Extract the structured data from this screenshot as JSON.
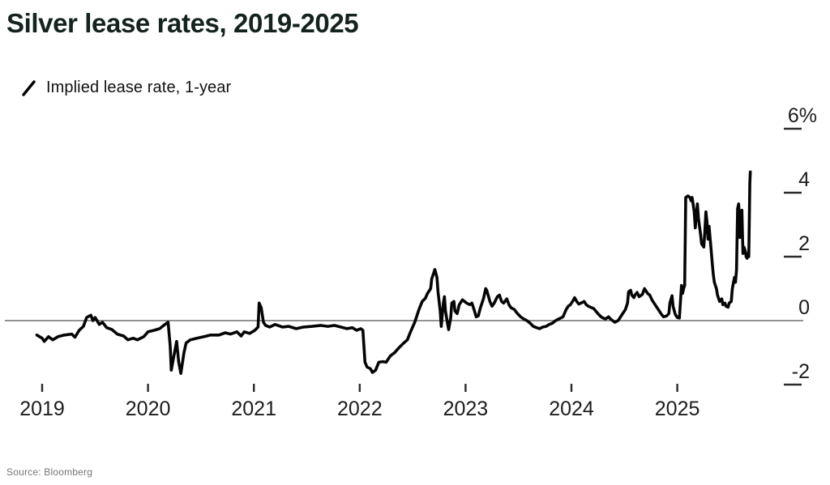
{
  "header": {
    "title": "Silver lease rates, 2019-2025"
  },
  "legend": {
    "items": [
      {
        "label": "Implied lease rate, 1-year",
        "marker": "diagonal-line-icon",
        "color": "#000000"
      }
    ]
  },
  "footer": {
    "source": "Source: Bloomberg"
  },
  "colors": {
    "line": "#050505",
    "zero_line": "#6e6e6e",
    "tick": "#2b2b2b",
    "axis_text": "#1c1c1c",
    "background": "#ffffff"
  },
  "chart_data": {
    "type": "line",
    "title": "Silver lease rates, 2019-2025",
    "xlabel": "",
    "ylabel": "Implied lease rate, 1-year (%)",
    "x_range": [
      2018.95,
      2025.78
    ],
    "y_range": [
      -2.7,
      6.4
    ],
    "grid": false,
    "zero_line": true,
    "legend_position": "top-left",
    "x_ticks": [
      {
        "value": 2019,
        "label": "2019"
      },
      {
        "value": 2020,
        "label": "2020"
      },
      {
        "value": 2021,
        "label": "2021"
      },
      {
        "value": 2022,
        "label": "2022"
      },
      {
        "value": 2023,
        "label": "2023"
      },
      {
        "value": 2024,
        "label": "2024"
      },
      {
        "value": 2025,
        "label": "2025"
      }
    ],
    "y_ticks": [
      {
        "value": 6,
        "label": "6%"
      },
      {
        "value": 4,
        "label": "4"
      },
      {
        "value": 2,
        "label": "2"
      },
      {
        "value": 0,
        "label": "0"
      },
      {
        "value": -2,
        "label": "-2"
      }
    ],
    "series": [
      {
        "name": "Implied lease rate, 1-year",
        "color": "#050505",
        "points": [
          [
            2018.95,
            -0.45
          ],
          [
            2019.0,
            -0.55
          ],
          [
            2019.02,
            -0.65
          ],
          [
            2019.06,
            -0.5
          ],
          [
            2019.1,
            -0.6
          ],
          [
            2019.15,
            -0.5
          ],
          [
            2019.21,
            -0.45
          ],
          [
            2019.28,
            -0.42
          ],
          [
            2019.31,
            -0.52
          ],
          [
            2019.35,
            -0.3
          ],
          [
            2019.39,
            -0.18
          ],
          [
            2019.42,
            0.1
          ],
          [
            2019.46,
            0.17
          ],
          [
            2019.48,
            0.0
          ],
          [
            2019.5,
            0.1
          ],
          [
            2019.54,
            -0.12
          ],
          [
            2019.57,
            -0.05
          ],
          [
            2019.61,
            -0.22
          ],
          [
            2019.66,
            -0.28
          ],
          [
            2019.71,
            -0.42
          ],
          [
            2019.77,
            -0.48
          ],
          [
            2019.81,
            -0.6
          ],
          [
            2019.86,
            -0.55
          ],
          [
            2019.9,
            -0.6
          ],
          [
            2019.96,
            -0.5
          ],
          [
            2020.0,
            -0.35
          ],
          [
            2020.06,
            -0.3
          ],
          [
            2020.11,
            -0.25
          ],
          [
            2020.16,
            -0.12
          ],
          [
            2020.19,
            -0.05
          ],
          [
            2020.21,
            -0.8
          ],
          [
            2020.22,
            -1.55
          ],
          [
            2020.25,
            -1.0
          ],
          [
            2020.27,
            -0.65
          ],
          [
            2020.29,
            -1.3
          ],
          [
            2020.31,
            -1.65
          ],
          [
            2020.34,
            -1.0
          ],
          [
            2020.36,
            -0.7
          ],
          [
            2020.4,
            -0.6
          ],
          [
            2020.46,
            -0.55
          ],
          [
            2020.53,
            -0.5
          ],
          [
            2020.59,
            -0.45
          ],
          [
            2020.67,
            -0.45
          ],
          [
            2020.73,
            -0.38
          ],
          [
            2020.78,
            -0.42
          ],
          [
            2020.84,
            -0.35
          ],
          [
            2020.88,
            -0.48
          ],
          [
            2020.91,
            -0.35
          ],
          [
            2020.96,
            -0.4
          ],
          [
            2021.01,
            -0.3
          ],
          [
            2021.04,
            -0.2
          ],
          [
            2021.05,
            0.55
          ],
          [
            2021.07,
            0.4
          ],
          [
            2021.09,
            -0.05
          ],
          [
            2021.11,
            -0.15
          ],
          [
            2021.15,
            -0.2
          ],
          [
            2021.2,
            -0.12
          ],
          [
            2021.27,
            -0.2
          ],
          [
            2021.33,
            -0.18
          ],
          [
            2021.4,
            -0.25
          ],
          [
            2021.47,
            -0.2
          ],
          [
            2021.55,
            -0.18
          ],
          [
            2021.63,
            -0.15
          ],
          [
            2021.7,
            -0.18
          ],
          [
            2021.76,
            -0.15
          ],
          [
            2021.82,
            -0.2
          ],
          [
            2021.88,
            -0.25
          ],
          [
            2021.93,
            -0.22
          ],
          [
            2021.97,
            -0.3
          ],
          [
            2022.01,
            -0.25
          ],
          [
            2022.03,
            -0.3
          ],
          [
            2022.05,
            -1.3
          ],
          [
            2022.07,
            -1.45
          ],
          [
            2022.1,
            -1.5
          ],
          [
            2022.12,
            -1.62
          ],
          [
            2022.15,
            -1.55
          ],
          [
            2022.18,
            -1.3
          ],
          [
            2022.22,
            -1.28
          ],
          [
            2022.25,
            -1.3
          ],
          [
            2022.29,
            -1.1
          ],
          [
            2022.33,
            -1.0
          ],
          [
            2022.37,
            -0.85
          ],
          [
            2022.41,
            -0.72
          ],
          [
            2022.45,
            -0.6
          ],
          [
            2022.48,
            -0.35
          ],
          [
            2022.52,
            -0.05
          ],
          [
            2022.56,
            0.35
          ],
          [
            2022.59,
            0.6
          ],
          [
            2022.62,
            0.7
          ],
          [
            2022.64,
            0.85
          ],
          [
            2022.67,
            1.0
          ],
          [
            2022.68,
            1.3
          ],
          [
            2022.7,
            1.5
          ],
          [
            2022.71,
            1.6
          ],
          [
            2022.73,
            1.35
          ],
          [
            2022.74,
            0.9
          ],
          [
            2022.76,
            0.3
          ],
          [
            2022.77,
            -0.18
          ],
          [
            2022.79,
            0.55
          ],
          [
            2022.8,
            0.75
          ],
          [
            2022.81,
            0.3
          ],
          [
            2022.83,
            -0.1
          ],
          [
            2022.84,
            -0.28
          ],
          [
            2022.86,
            0.1
          ],
          [
            2022.87,
            0.55
          ],
          [
            2022.89,
            0.6
          ],
          [
            2022.9,
            0.3
          ],
          [
            2022.92,
            0.22
          ],
          [
            2022.94,
            0.5
          ],
          [
            2022.97,
            0.65
          ],
          [
            2022.99,
            0.6
          ],
          [
            2023.01,
            0.55
          ],
          [
            2023.04,
            0.5
          ],
          [
            2023.06,
            0.55
          ],
          [
            2023.08,
            0.35
          ],
          [
            2023.1,
            0.12
          ],
          [
            2023.12,
            0.15
          ],
          [
            2023.14,
            0.4
          ],
          [
            2023.17,
            0.7
          ],
          [
            2023.19,
            1.0
          ],
          [
            2023.2,
            0.95
          ],
          [
            2023.23,
            0.6
          ],
          [
            2023.25,
            0.45
          ],
          [
            2023.27,
            0.55
          ],
          [
            2023.3,
            0.75
          ],
          [
            2023.32,
            0.8
          ],
          [
            2023.34,
            0.6
          ],
          [
            2023.36,
            0.55
          ],
          [
            2023.39,
            0.68
          ],
          [
            2023.41,
            0.5
          ],
          [
            2023.43,
            0.4
          ],
          [
            2023.46,
            0.35
          ],
          [
            2023.49,
            0.22
          ],
          [
            2023.52,
            0.12
          ],
          [
            2023.55,
            0.05
          ],
          [
            2023.58,
            0.0
          ],
          [
            2023.61,
            -0.08
          ],
          [
            2023.64,
            -0.18
          ],
          [
            2023.67,
            -0.22
          ],
          [
            2023.7,
            -0.25
          ],
          [
            2023.73,
            -0.2
          ],
          [
            2023.76,
            -0.18
          ],
          [
            2023.79,
            -0.12
          ],
          [
            2023.82,
            -0.08
          ],
          [
            2023.85,
            0.0
          ],
          [
            2023.88,
            0.05
          ],
          [
            2023.92,
            0.12
          ],
          [
            2023.95,
            0.35
          ],
          [
            2023.97,
            0.45
          ],
          [
            2023.99,
            0.5
          ],
          [
            2024.02,
            0.65
          ],
          [
            2024.03,
            0.72
          ],
          [
            2024.05,
            0.6
          ],
          [
            2024.07,
            0.52
          ],
          [
            2024.09,
            0.55
          ],
          [
            2024.12,
            0.6
          ],
          [
            2024.14,
            0.5
          ],
          [
            2024.16,
            0.45
          ],
          [
            2024.18,
            0.42
          ],
          [
            2024.21,
            0.38
          ],
          [
            2024.23,
            0.3
          ],
          [
            2024.25,
            0.22
          ],
          [
            2024.28,
            0.12
          ],
          [
            2024.3,
            0.08
          ],
          [
            2024.32,
            0.05
          ],
          [
            2024.35,
            0.12
          ],
          [
            2024.37,
            0.05
          ],
          [
            2024.39,
            0.0
          ],
          [
            2024.41,
            -0.05
          ],
          [
            2024.44,
            0.0
          ],
          [
            2024.46,
            0.1
          ],
          [
            2024.48,
            0.2
          ],
          [
            2024.51,
            0.35
          ],
          [
            2024.53,
            0.55
          ],
          [
            2024.54,
            0.9
          ],
          [
            2024.56,
            0.95
          ],
          [
            2024.57,
            0.8
          ],
          [
            2024.59,
            0.72
          ],
          [
            2024.6,
            0.8
          ],
          [
            2024.62,
            0.88
          ],
          [
            2024.64,
            0.75
          ],
          [
            2024.67,
            0.82
          ],
          [
            2024.69,
            1.0
          ],
          [
            2024.7,
            0.95
          ],
          [
            2024.72,
            0.85
          ],
          [
            2024.74,
            0.8
          ],
          [
            2024.76,
            0.65
          ],
          [
            2024.78,
            0.55
          ],
          [
            2024.8,
            0.45
          ],
          [
            2024.83,
            0.3
          ],
          [
            2024.85,
            0.2
          ],
          [
            2024.87,
            0.12
          ],
          [
            2024.9,
            0.15
          ],
          [
            2024.92,
            0.22
          ],
          [
            2024.93,
            0.55
          ],
          [
            2024.95,
            0.78
          ],
          [
            2024.96,
            0.45
          ],
          [
            2024.98,
            0.2
          ],
          [
            2025.0,
            0.1
          ],
          [
            2025.02,
            0.08
          ],
          [
            2025.03,
            0.6
          ],
          [
            2025.04,
            1.1
          ],
          [
            2025.05,
            0.85
          ],
          [
            2025.06,
            1.0
          ],
          [
            2025.07,
            1.1
          ],
          [
            2025.08,
            3.85
          ],
          [
            2025.1,
            3.9
          ],
          [
            2025.12,
            3.85
          ],
          [
            2025.13,
            3.75
          ],
          [
            2025.14,
            3.85
          ],
          [
            2025.16,
            3.4
          ],
          [
            2025.17,
            2.9
          ],
          [
            2025.18,
            3.3
          ],
          [
            2025.19,
            3.65
          ],
          [
            2025.2,
            3.2
          ],
          [
            2025.22,
            2.7
          ],
          [
            2025.23,
            2.4
          ],
          [
            2025.25,
            2.3
          ],
          [
            2025.26,
            2.8
          ],
          [
            2025.27,
            3.4
          ],
          [
            2025.28,
            3.1
          ],
          [
            2025.29,
            2.55
          ],
          [
            2025.3,
            2.95
          ],
          [
            2025.32,
            2.2
          ],
          [
            2025.33,
            1.8
          ],
          [
            2025.34,
            1.45
          ],
          [
            2025.35,
            1.2
          ],
          [
            2025.37,
            1.0
          ],
          [
            2025.38,
            0.8
          ],
          [
            2025.4,
            0.6
          ],
          [
            2025.42,
            0.68
          ],
          [
            2025.43,
            0.5
          ],
          [
            2025.45,
            0.55
          ],
          [
            2025.46,
            0.45
          ],
          [
            2025.48,
            0.42
          ],
          [
            2025.49,
            0.55
          ],
          [
            2025.51,
            0.6
          ],
          [
            2025.52,
            1.0
          ],
          [
            2025.54,
            1.35
          ],
          [
            2025.55,
            1.2
          ],
          [
            2025.56,
            1.6
          ],
          [
            2025.57,
            3.5
          ],
          [
            2025.58,
            3.65
          ],
          [
            2025.585,
            3.3
          ],
          [
            2025.59,
            2.6
          ],
          [
            2025.6,
            3.2
          ],
          [
            2025.61,
            3.45
          ],
          [
            2025.615,
            2.8
          ],
          [
            2025.62,
            2.1
          ],
          [
            2025.63,
            2.3
          ],
          [
            2025.645,
            2.15
          ],
          [
            2025.65,
            2.0
          ],
          [
            2025.66,
            1.95
          ],
          [
            2025.67,
            2.1
          ],
          [
            2025.675,
            2.0
          ],
          [
            2025.685,
            4.3
          ],
          [
            2025.69,
            4.65
          ]
        ]
      }
    ]
  }
}
